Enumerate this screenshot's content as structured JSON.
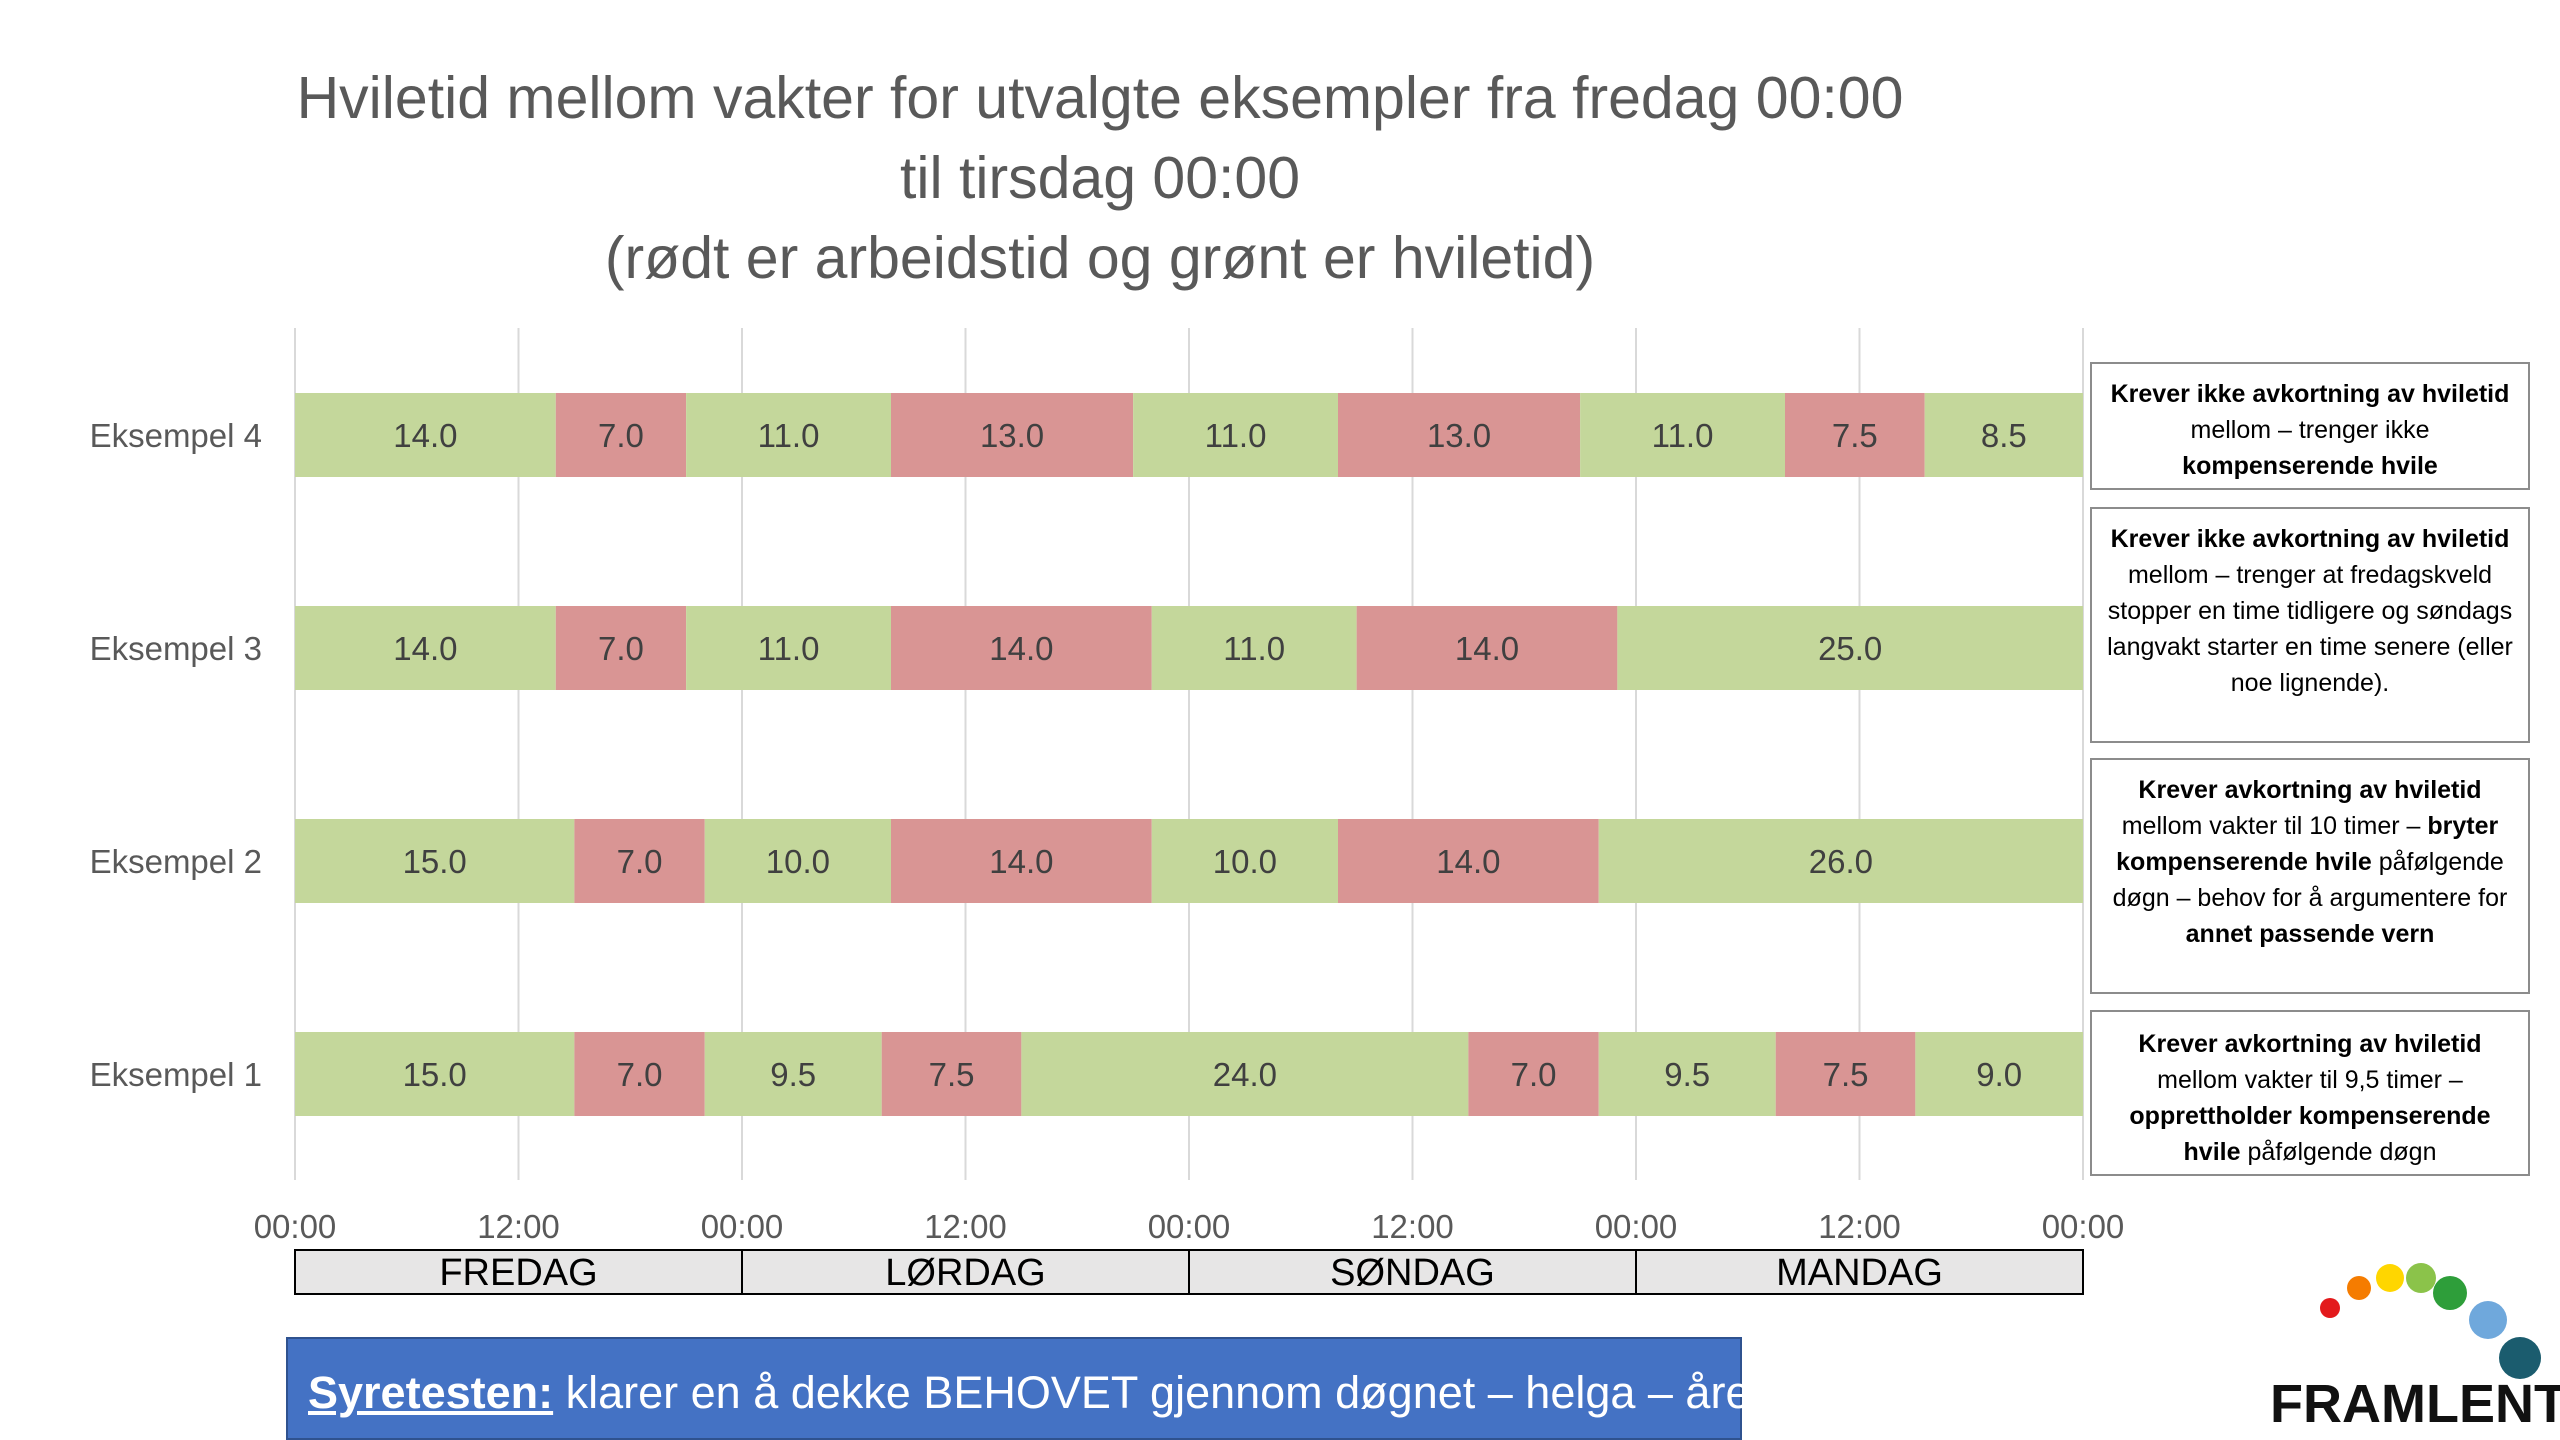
{
  "title_lines": [
    "Hviletid mellom vakter for utvalgte eksempler fra fredag 00:00",
    "til tirsdag 00:00",
    "(rødt er arbeidstid og grønt er hviletid)"
  ],
  "colors": {
    "work": "#d99594",
    "rest": "#c4d79b",
    "grid": "#d9d9d9",
    "axis_text": "#595959",
    "banner": "#4472c4"
  },
  "chart_data": {
    "type": "bar",
    "orientation": "horizontal",
    "stacked": true,
    "x_range_hours": [
      0,
      96
    ],
    "x_ticks": [
      "00:00",
      "12:00",
      "00:00",
      "12:00",
      "00:00",
      "12:00",
      "00:00",
      "12:00",
      "00:00"
    ],
    "days": [
      "FREDAG",
      "LØRDAG",
      "SØNDAG",
      "MANDAG"
    ],
    "series": [
      {
        "name": "Eksempel 4",
        "segments": [
          {
            "kind": "rest",
            "hours": 14.0,
            "label": "14.0"
          },
          {
            "kind": "work",
            "hours": 7.0,
            "label": "7.0"
          },
          {
            "kind": "rest",
            "hours": 11.0,
            "label": "11.0"
          },
          {
            "kind": "work",
            "hours": 13.0,
            "label": "13.0"
          },
          {
            "kind": "rest",
            "hours": 11.0,
            "label": "11.0"
          },
          {
            "kind": "work",
            "hours": 13.0,
            "label": "13.0"
          },
          {
            "kind": "rest",
            "hours": 11.0,
            "label": "11.0"
          },
          {
            "kind": "work",
            "hours": 7.5,
            "label": "7.5"
          },
          {
            "kind": "rest",
            "hours": 8.5,
            "label": "8.5"
          }
        ]
      },
      {
        "name": "Eksempel 3",
        "segments": [
          {
            "kind": "rest",
            "hours": 14.0,
            "label": "14.0"
          },
          {
            "kind": "work",
            "hours": 7.0,
            "label": "7.0"
          },
          {
            "kind": "rest",
            "hours": 11.0,
            "label": "11.0"
          },
          {
            "kind": "work",
            "hours": 14.0,
            "label": "14.0"
          },
          {
            "kind": "rest",
            "hours": 11.0,
            "label": "11.0"
          },
          {
            "kind": "work",
            "hours": 14.0,
            "label": "14.0"
          },
          {
            "kind": "rest",
            "hours": 25.0,
            "label": "25.0"
          }
        ]
      },
      {
        "name": "Eksempel 2",
        "segments": [
          {
            "kind": "rest",
            "hours": 15.0,
            "label": "15.0"
          },
          {
            "kind": "work",
            "hours": 7.0,
            "label": "7.0"
          },
          {
            "kind": "rest",
            "hours": 10.0,
            "label": "10.0"
          },
          {
            "kind": "work",
            "hours": 14.0,
            "label": "14.0"
          },
          {
            "kind": "rest",
            "hours": 10.0,
            "label": "10.0"
          },
          {
            "kind": "work",
            "hours": 14.0,
            "label": "14.0"
          },
          {
            "kind": "rest",
            "hours": 26.0,
            "label": "26.0"
          }
        ]
      },
      {
        "name": "Eksempel 1",
        "segments": [
          {
            "kind": "rest",
            "hours": 15.0,
            "label": "15.0"
          },
          {
            "kind": "work",
            "hours": 7.0,
            "label": "7.0"
          },
          {
            "kind": "rest",
            "hours": 9.5,
            "label": "9.5"
          },
          {
            "kind": "work",
            "hours": 7.5,
            "label": "7.5"
          },
          {
            "kind": "rest",
            "hours": 24.0,
            "label": "24.0"
          },
          {
            "kind": "work",
            "hours": 7.0,
            "label": "7.0"
          },
          {
            "kind": "rest",
            "hours": 9.5,
            "label": "9.5"
          },
          {
            "kind": "work",
            "hours": 7.5,
            "label": "7.5"
          },
          {
            "kind": "rest",
            "hours": 9.0,
            "label": "9.0"
          }
        ]
      }
    ]
  },
  "notes": [
    {
      "parts": [
        {
          "t": "Krever ikke avkortning av hviletid",
          "b": true
        },
        {
          "t": " mellom –  trenger ikke ",
          "b": false
        },
        {
          "t": "kompenserende hvile",
          "b": true
        }
      ]
    },
    {
      "parts": [
        {
          "t": "Krever ikke avkortning av hviletid",
          "b": true
        },
        {
          "t": " mellom –  trenger at fredagskveld stopper en time tidligere og søndags langvakt starter en time senere (eller noe lignende).",
          "b": false
        }
      ]
    },
    {
      "parts": [
        {
          "t": "Krever avkortning av hviletid",
          "b": true
        },
        {
          "t": " mellom vakter til 10 timer – ",
          "b": false
        },
        {
          "t": "bryter kompenserende hvile",
          "b": true
        },
        {
          "t": " påfølgende døgn – behov for å argumentere for ",
          "b": false
        },
        {
          "t": "annet passende vern",
          "b": true
        }
      ]
    },
    {
      "parts": [
        {
          "t": "Krever avkortning av hviletid",
          "b": true
        },
        {
          "t": " mellom vakter til 9,5 timer – ",
          "b": false
        },
        {
          "t": "opprettholder kompenserende hvile",
          "b": true
        },
        {
          "t": " påfølgende døgn",
          "b": false
        }
      ]
    }
  ],
  "banner": {
    "label": "Syretesten:",
    "text": " klarer en å dekke BEHOVET gjennom døgnet – helga – året?"
  },
  "logo": {
    "text": "FRAMLENT",
    "dot_colors": [
      "#e31a1c",
      "#f57c00",
      "#ffd600",
      "#8bc34a",
      "#2e9e3a",
      "#6fa8dc",
      "#1b5c6e"
    ]
  }
}
